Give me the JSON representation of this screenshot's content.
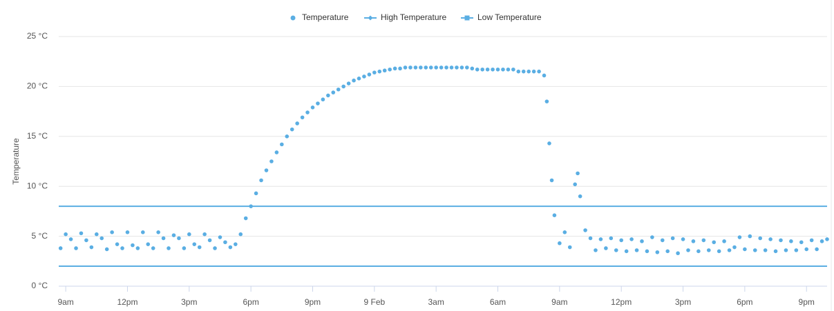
{
  "chart_data": {
    "type": "scatter",
    "ylabel": "Temperature",
    "xlim": [
      8.66,
      46.0
    ],
    "ylim": [
      0,
      25
    ],
    "xticks": [
      {
        "value": 9,
        "label": "9am"
      },
      {
        "value": 12,
        "label": "12pm"
      },
      {
        "value": 15,
        "label": "3pm"
      },
      {
        "value": 18,
        "label": "6pm"
      },
      {
        "value": 21,
        "label": "9pm"
      },
      {
        "value": 24,
        "label": "9 Feb"
      },
      {
        "value": 27,
        "label": "3am"
      },
      {
        "value": 30,
        "label": "6am"
      },
      {
        "value": 33,
        "label": "9am"
      },
      {
        "value": 36,
        "label": "12pm"
      },
      {
        "value": 39,
        "label": "3pm"
      },
      {
        "value": 42,
        "label": "6pm"
      },
      {
        "value": 45,
        "label": "9pm"
      }
    ],
    "yticks": [
      {
        "value": 0,
        "label": "0 °C"
      },
      {
        "value": 5,
        "label": "5 °C"
      },
      {
        "value": 10,
        "label": "10 °C"
      },
      {
        "value": 15,
        "label": "15 °C"
      },
      {
        "value": 20,
        "label": "20 °C"
      },
      {
        "value": 25,
        "label": "25 °C"
      }
    ],
    "grid": true,
    "legend": "top",
    "series": [
      {
        "name": "Temperature",
        "color": "#5aaee3",
        "marker": "circle",
        "x": [
          8.75,
          9,
          9.25,
          9.5,
          9.75,
          10,
          10.25,
          10.5,
          10.75,
          11,
          11.25,
          11.5,
          11.75,
          12,
          12.25,
          12.5,
          12.75,
          13,
          13.25,
          13.5,
          13.75,
          14,
          14.25,
          14.5,
          14.75,
          15,
          15.25,
          15.5,
          15.75,
          16,
          16.25,
          16.5,
          16.75,
          17,
          17.25,
          17.5,
          17.75,
          18,
          18.25,
          18.5,
          18.75,
          19,
          19.25,
          19.5,
          19.75,
          20,
          20.25,
          20.5,
          20.75,
          21,
          21.25,
          21.5,
          21.75,
          22,
          22.25,
          22.5,
          22.75,
          23,
          23.25,
          23.5,
          23.75,
          24,
          24.25,
          24.5,
          24.75,
          25,
          25.25,
          25.5,
          25.75,
          26,
          26.25,
          26.5,
          26.75,
          27,
          27.25,
          27.5,
          27.75,
          28,
          28.25,
          28.5,
          28.75,
          29,
          29.25,
          29.5,
          29.75,
          30,
          30.25,
          30.5,
          30.75,
          31,
          31.25,
          31.5,
          31.75,
          32,
          32.25,
          32.38,
          32.5,
          32.62,
          32.75,
          33,
          33.25,
          33.5,
          33.75,
          33.88,
          34,
          34.25,
          34.5,
          34.75,
          35,
          35.25,
          35.5,
          35.75,
          36,
          36.25,
          36.5,
          36.75,
          37,
          37.25,
          37.5,
          37.75,
          38,
          38.25,
          38.5,
          38.75,
          39,
          39.25,
          39.5,
          39.75,
          40,
          40.25,
          40.5,
          40.75,
          41,
          41.25,
          41.5,
          41.75,
          42,
          42.25,
          42.5,
          42.75,
          43,
          43.25,
          43.5,
          43.75,
          44,
          44.25,
          44.5,
          44.75,
          45,
          45.25,
          45.5,
          45.75,
          46
        ],
        "values": [
          3.8,
          5.2,
          4.7,
          3.8,
          5.3,
          4.6,
          3.9,
          5.2,
          4.8,
          3.7,
          5.4,
          4.2,
          3.8,
          5.4,
          4.1,
          3.8,
          5.4,
          4.2,
          3.8,
          5.4,
          4.8,
          3.8,
          5.1,
          4.8,
          3.8,
          5.2,
          4.2,
          3.9,
          5.2,
          4.6,
          3.8,
          4.9,
          4.4,
          3.9,
          4.2,
          5.2,
          6.8,
          8.0,
          9.3,
          10.6,
          11.6,
          12.5,
          13.4,
          14.2,
          15.0,
          15.7,
          16.3,
          16.9,
          17.4,
          17.9,
          18.3,
          18.7,
          19.1,
          19.4,
          19.7,
          20.0,
          20.3,
          20.6,
          20.8,
          21.0,
          21.2,
          21.4,
          21.5,
          21.6,
          21.7,
          21.8,
          21.8,
          21.9,
          21.9,
          21.9,
          21.9,
          21.9,
          21.9,
          21.9,
          21.9,
          21.9,
          21.9,
          21.9,
          21.9,
          21.9,
          21.8,
          21.7,
          21.7,
          21.7,
          21.7,
          21.7,
          21.7,
          21.7,
          21.7,
          21.5,
          21.5,
          21.5,
          21.5,
          21.5,
          21.1,
          18.5,
          14.3,
          10.6,
          7.1,
          4.3,
          5.4,
          3.9,
          10.2,
          11.3,
          9.0,
          5.6,
          4.8,
          3.6,
          4.7,
          3.8,
          4.8,
          3.6,
          4.6,
          3.5,
          4.7,
          3.6,
          4.5,
          3.5,
          4.9,
          3.4,
          4.6,
          3.5,
          4.8,
          3.3,
          4.7,
          3.6,
          4.5,
          3.5,
          4.6,
          3.6,
          4.4,
          3.5,
          4.5,
          3.6,
          3.9,
          4.9,
          3.7,
          5.0,
          3.6,
          4.8,
          3.6,
          4.7,
          3.5,
          4.6,
          3.6,
          4.5,
          3.6,
          4.4,
          3.7,
          4.6,
          3.7,
          4.5,
          4.7
        ]
      },
      {
        "name": "High Temperature",
        "color": "#5aaee3",
        "marker": "diamond",
        "x": [
          8.66,
          46.0
        ],
        "values": [
          8,
          8
        ]
      },
      {
        "name": "Low Temperature",
        "color": "#5aaee3",
        "marker": "square",
        "x": [
          8.66,
          46.0
        ],
        "values": [
          2,
          2
        ]
      }
    ]
  }
}
